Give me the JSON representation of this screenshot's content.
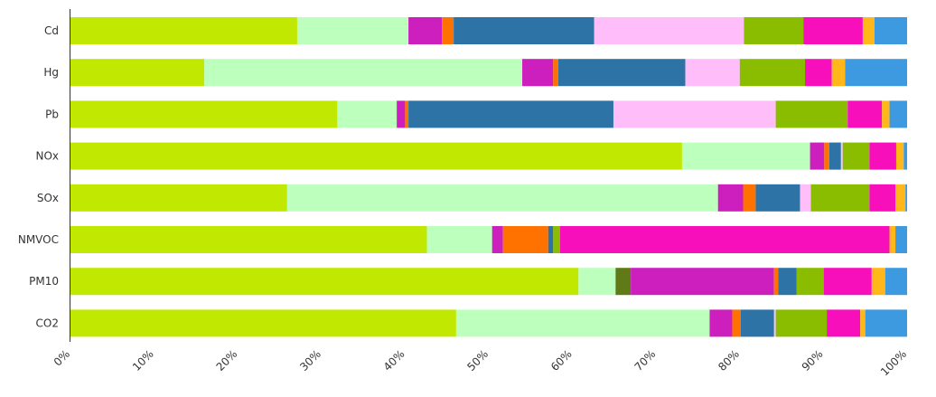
{
  "chart_data": {
    "type": "bar",
    "orientation": "horizontal",
    "stacked": "percent",
    "title": "",
    "xlabel": "",
    "ylabel": "",
    "xlim": [
      0,
      100
    ],
    "grid": false,
    "legend": "none",
    "categories": [
      "Cd",
      "Hg",
      "Pb",
      "NOx",
      "SOx",
      "NMVOC",
      "PM10",
      "CO2"
    ],
    "x_ticks": [
      "0%",
      "10%",
      "20%",
      "30%",
      "40%",
      "50%",
      "60%",
      "70%",
      "80%",
      "90%",
      "100%"
    ],
    "series": [
      {
        "color": "#c0e800",
        "values": [
          27.1,
          16.0,
          31.9,
          73.1,
          25.9,
          42.6,
          60.3,
          46.1
        ]
      },
      {
        "color": "#bdffbd",
        "values": [
          13.3,
          38.0,
          7.1,
          15.3,
          51.5,
          7.8,
          4.4,
          30.3
        ]
      },
      {
        "color": "#cc1fbe",
        "values": [
          4.0,
          3.7,
          1.0,
          1.7,
          3.0,
          1.3,
          0.0,
          2.7
        ]
      },
      {
        "color": "#ff7200",
        "values": [
          1.4,
          0.6,
          0.4,
          0.6,
          1.5,
          5.4,
          0.0,
          1.0
        ]
      },
      {
        "color": "#2e73a5",
        "values": [
          16.8,
          15.2,
          24.5,
          1.4,
          5.3,
          0.6,
          0.0,
          4.0
        ]
      },
      {
        "color": "#ffbdfa",
        "values": [
          17.9,
          6.5,
          19.4,
          0.2,
          1.3,
          0.0,
          0.0,
          0.2
        ]
      },
      {
        "color": "#8abd00",
        "values": [
          7.1,
          7.8,
          8.6,
          3.2,
          7.0,
          0.8,
          1.8,
          6.1
        ]
      },
      {
        "color": "#f70fbc",
        "values": [
          7.1,
          3.2,
          4.1,
          3.2,
          3.1,
          39.4,
          0.0,
          4.0
        ]
      },
      {
        "color": "#ffb71a",
        "values": [
          1.4,
          1.6,
          0.9,
          0.9,
          1.2,
          0.7,
          0.0,
          0.6
        ]
      },
      {
        "color": "#3d9ae0",
        "values": [
          3.9,
          7.4,
          2.1,
          0.4,
          0.2,
          1.4,
          0.0,
          5.0
        ]
      }
    ],
    "pm10_extra": {
      "note_free_values": [
        0.0,
        0.0,
        0.0
      ],
      "series": [
        {
          "color": "#5f7a16",
          "value": 1.8
        },
        {
          "color": "#cc1fbe",
          "value": 17.0
        },
        {
          "color": "#ff7200",
          "value": 0.5
        },
        {
          "color": "#2e73a5",
          "value": 2.2
        },
        {
          "color": "#8abd00",
          "value": 3.2
        },
        {
          "color": "#f70fbc",
          "value": 5.7
        },
        {
          "color": "#ffb71a",
          "value": 1.6
        },
        {
          "color": "#3d9ae0",
          "value": 2.6
        }
      ]
    }
  }
}
